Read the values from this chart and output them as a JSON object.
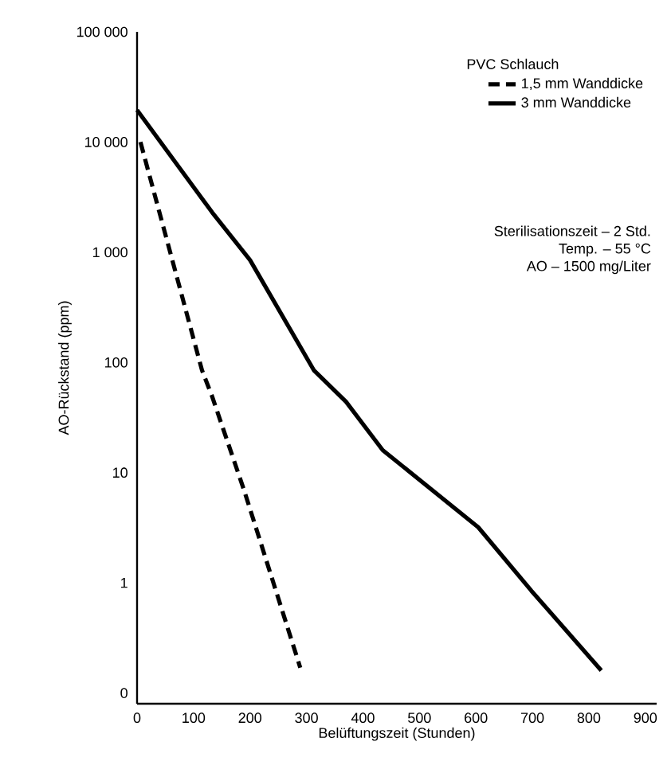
{
  "chart_data": {
    "type": "line",
    "xlabel": "Belüftungszeit (Stunden)",
    "ylabel": "AO-Rückstand (ppm)",
    "legend_title": "PVC Schlauch",
    "log": "y",
    "xlim": [
      0,
      920
    ],
    "ylim": [
      0.08,
      100000
    ],
    "xticks": [
      0,
      100,
      200,
      300,
      400,
      500,
      600,
      700,
      800,
      900
    ],
    "yticks": [
      {
        "value": 0.1,
        "label": "0"
      },
      1,
      10,
      100,
      {
        "value": 1000,
        "label": "1 000"
      },
      {
        "value": 10000,
        "label": "10 000"
      },
      {
        "value": 100000,
        "label": "100 000"
      }
    ],
    "grid": false,
    "legend": "top right",
    "marker": "none",
    "series": [
      {
        "name": "1,5 mm Wanddicke",
        "color": "#000000",
        "line_style": "dashed",
        "x": [
          6,
          115,
          133,
          190,
          289
        ],
        "values": [
          10000,
          85,
          49,
          6.8,
          0.17
        ]
      },
      {
        "name": "3 mm Wanddicke",
        "color": "#000000",
        "line_style": "solid",
        "x": [
          0,
          133,
          200,
          313,
          370,
          435,
          604,
          698,
          822
        ],
        "values": [
          19500,
          2300,
          850,
          85,
          44,
          16,
          3.2,
          0.85,
          0.16
        ]
      }
    ],
    "annotations": [
      "Sterilisationszeit – 2 Std.",
      "Temp. – 55 °C",
      "AO – 1500 mg/Liter"
    ]
  }
}
